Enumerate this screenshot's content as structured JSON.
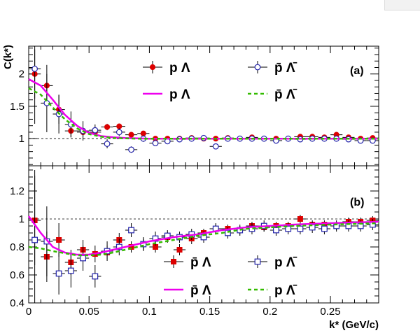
{
  "chart_data": [
    {
      "type": "scatter",
      "panel_label": "(a)",
      "ylabel": "C(k*)",
      "xlabel": "",
      "xlim": [
        0,
        0.29
      ],
      "ylim": [
        0.58,
        2.43
      ],
      "yticks": [
        "1",
        "1.5",
        "2"
      ],
      "xticks": [],
      "reference_line": 1,
      "legend_position": "top-right",
      "series": [
        {
          "name": "p Λ",
          "kind": "data",
          "marker": "filled-circle",
          "color": "#dd0000",
          "x": [
            0.005,
            0.015,
            0.025,
            0.035,
            0.045,
            0.055,
            0.065,
            0.075,
            0.085,
            0.095,
            0.105,
            0.115,
            0.125,
            0.135,
            0.145,
            0.155,
            0.165,
            0.175,
            0.185,
            0.195,
            0.205,
            0.215,
            0.225,
            0.235,
            0.245,
            0.255,
            0.265,
            0.275,
            0.285
          ],
          "y": [
            2.0,
            1.82,
            1.45,
            1.12,
            1.1,
            1.1,
            1.18,
            1.19,
            1.06,
            1.08,
            1.0,
            1.0,
            1.0,
            1.01,
            1.0,
            1.0,
            1.01,
            1.0,
            1.02,
            1.0,
            1.0,
            1.0,
            1.03,
            1.03,
            1.02,
            1.06,
            1.02,
            1.0,
            1.01
          ],
          "yerr": [
            0.38,
            0.32,
            0.22,
            0.1,
            0.07,
            0.05,
            0.05,
            0.04,
            0.04,
            0.03,
            0.03,
            0.03,
            0.03,
            0.03,
            0.03,
            0.03,
            0.03,
            0.03,
            0.03,
            0.03,
            0.03,
            0.03,
            0.03,
            0.03,
            0.03,
            0.03,
            0.03,
            0.03,
            0.03
          ]
        },
        {
          "name": "p̄ Λ̄",
          "kind": "data",
          "marker": "open-circle",
          "color": "#2222aa",
          "x": [
            0.005,
            0.015,
            0.025,
            0.035,
            0.045,
            0.055,
            0.065,
            0.075,
            0.085,
            0.095,
            0.105,
            0.115,
            0.125,
            0.135,
            0.145,
            0.155,
            0.165,
            0.175,
            0.185,
            0.195,
            0.205,
            0.215,
            0.225,
            0.235,
            0.245,
            0.255,
            0.265,
            0.275,
            0.285
          ],
          "y": [
            2.08,
            1.55,
            1.38,
            1.22,
            1.12,
            1.13,
            0.92,
            1.1,
            0.83,
            1.0,
            0.93,
            0.96,
            0.99,
            1.0,
            1.01,
            0.88,
            1.0,
            1.0,
            1.0,
            1.0,
            0.97,
            1.0,
            0.99,
            1.0,
            1.0,
            1.0,
            0.99,
            0.97,
            0.97
          ],
          "yerr": [
            0.85,
            0.45,
            0.3,
            0.2,
            0.15,
            0.09,
            0.07,
            0.06,
            0.05,
            0.05,
            0.04,
            0.04,
            0.04,
            0.04,
            0.04,
            0.04,
            0.04,
            0.04,
            0.04,
            0.04,
            0.04,
            0.04,
            0.04,
            0.04,
            0.04,
            0.04,
            0.04,
            0.04,
            0.04
          ]
        },
        {
          "name": "p Λ",
          "kind": "fit",
          "line": "solid",
          "color": "#ee00ee",
          "x": [
            0.0,
            0.01,
            0.02,
            0.03,
            0.04,
            0.05,
            0.06,
            0.07,
            0.08,
            0.09,
            0.1,
            0.15,
            0.2,
            0.25,
            0.29
          ],
          "y": [
            1.92,
            1.82,
            1.6,
            1.37,
            1.2,
            1.09,
            1.04,
            1.02,
            1.01,
            1.005,
            1.0,
            1.0,
            1.0,
            1.0,
            1.0
          ]
        },
        {
          "name": "p̄ Λ̄",
          "kind": "fit",
          "line": "dashed",
          "color": "#33bb00",
          "x": [
            0.0,
            0.01,
            0.02,
            0.03,
            0.04,
            0.05,
            0.06,
            0.07,
            0.08,
            0.09,
            0.1,
            0.15,
            0.2,
            0.25,
            0.29
          ],
          "y": [
            1.78,
            1.68,
            1.48,
            1.3,
            1.16,
            1.07,
            1.03,
            1.01,
            1.005,
            1.0,
            1.0,
            1.0,
            1.0,
            1.0,
            1.0
          ]
        }
      ]
    },
    {
      "type": "scatter",
      "panel_label": "(b)",
      "ylabel": "",
      "xlabel": "k* (GeV/c)",
      "xlim": [
        0,
        0.29
      ],
      "ylim": [
        0.4,
        1.38
      ],
      "yticks": [
        "0.4",
        "0.6",
        "0.8",
        "1",
        "1.2"
      ],
      "xticks": [
        "0",
        "0.05",
        "0.1",
        "0.15",
        "0.2",
        "0.25"
      ],
      "reference_line": 1,
      "legend_position": "bottom-right",
      "series": [
        {
          "name": "p̄ Λ",
          "kind": "data",
          "marker": "filled-square",
          "color": "#dd0000",
          "x": [
            0.005,
            0.015,
            0.025,
            0.035,
            0.045,
            0.055,
            0.065,
            0.075,
            0.085,
            0.095,
            0.105,
            0.115,
            0.125,
            0.135,
            0.145,
            0.155,
            0.165,
            0.175,
            0.185,
            0.195,
            0.205,
            0.215,
            0.225,
            0.235,
            0.245,
            0.255,
            0.265,
            0.275,
            0.285
          ],
          "y": [
            0.99,
            0.73,
            0.85,
            0.69,
            0.78,
            0.75,
            0.76,
            0.85,
            0.8,
            0.82,
            0.8,
            0.87,
            0.78,
            0.86,
            0.9,
            0.93,
            0.93,
            0.92,
            0.95,
            0.94,
            0.95,
            0.95,
            1.0,
            0.96,
            0.96,
            0.95,
            0.98,
            0.98,
            0.99
          ],
          "yerr": [
            0.32,
            0.18,
            0.12,
            0.09,
            0.07,
            0.06,
            0.05,
            0.05,
            0.04,
            0.04,
            0.04,
            0.04,
            0.04,
            0.04,
            0.03,
            0.03,
            0.03,
            0.03,
            0.03,
            0.03,
            0.03,
            0.03,
            0.03,
            0.03,
            0.03,
            0.03,
            0.03,
            0.03,
            0.03
          ]
        },
        {
          "name": "p Λ̄",
          "kind": "data",
          "marker": "open-square",
          "color": "#2222aa",
          "x": [
            0.005,
            0.015,
            0.025,
            0.035,
            0.045,
            0.055,
            0.065,
            0.075,
            0.085,
            0.095,
            0.105,
            0.115,
            0.125,
            0.135,
            0.145,
            0.155,
            0.165,
            0.175,
            0.185,
            0.195,
            0.205,
            0.215,
            0.225,
            0.235,
            0.245,
            0.255,
            0.265,
            0.275,
            0.285
          ],
          "y": [
            0.85,
            0.84,
            0.61,
            0.63,
            0.72,
            0.59,
            0.77,
            0.8,
            0.92,
            0.82,
            0.86,
            0.88,
            0.87,
            0.89,
            0.87,
            0.93,
            0.9,
            0.92,
            0.93,
            0.95,
            0.92,
            0.93,
            0.93,
            0.94,
            0.93,
            0.95,
            0.95,
            0.95,
            0.96
          ],
          "yerr": [
            0.5,
            0.25,
            0.15,
            0.12,
            0.09,
            0.08,
            0.07,
            0.06,
            0.05,
            0.05,
            0.05,
            0.04,
            0.04,
            0.04,
            0.04,
            0.04,
            0.04,
            0.04,
            0.04,
            0.04,
            0.04,
            0.04,
            0.04,
            0.04,
            0.04,
            0.04,
            0.04,
            0.04,
            0.04
          ]
        },
        {
          "name": "p̄ Λ",
          "kind": "fit",
          "line": "solid",
          "color": "#ee00ee",
          "x": [
            0.0,
            0.01,
            0.02,
            0.03,
            0.04,
            0.05,
            0.06,
            0.07,
            0.08,
            0.09,
            0.1,
            0.12,
            0.14,
            0.16,
            0.18,
            0.2,
            0.22,
            0.25,
            0.29
          ],
          "y": [
            1.02,
            0.9,
            0.8,
            0.76,
            0.745,
            0.745,
            0.76,
            0.78,
            0.8,
            0.82,
            0.84,
            0.87,
            0.89,
            0.92,
            0.94,
            0.95,
            0.96,
            0.97,
            0.98
          ]
        },
        {
          "name": "p Λ̄",
          "kind": "fit",
          "line": "dashed",
          "color": "#33bb00",
          "x": [
            0.0,
            0.01,
            0.02,
            0.03,
            0.04,
            0.05,
            0.06,
            0.07,
            0.08,
            0.09,
            0.1,
            0.12,
            0.14,
            0.16,
            0.18,
            0.2,
            0.22,
            0.25,
            0.29
          ],
          "y": [
            0.8,
            0.79,
            0.77,
            0.755,
            0.74,
            0.74,
            0.745,
            0.76,
            0.78,
            0.8,
            0.82,
            0.85,
            0.88,
            0.9,
            0.93,
            0.94,
            0.95,
            0.96,
            0.97
          ]
        }
      ]
    }
  ]
}
